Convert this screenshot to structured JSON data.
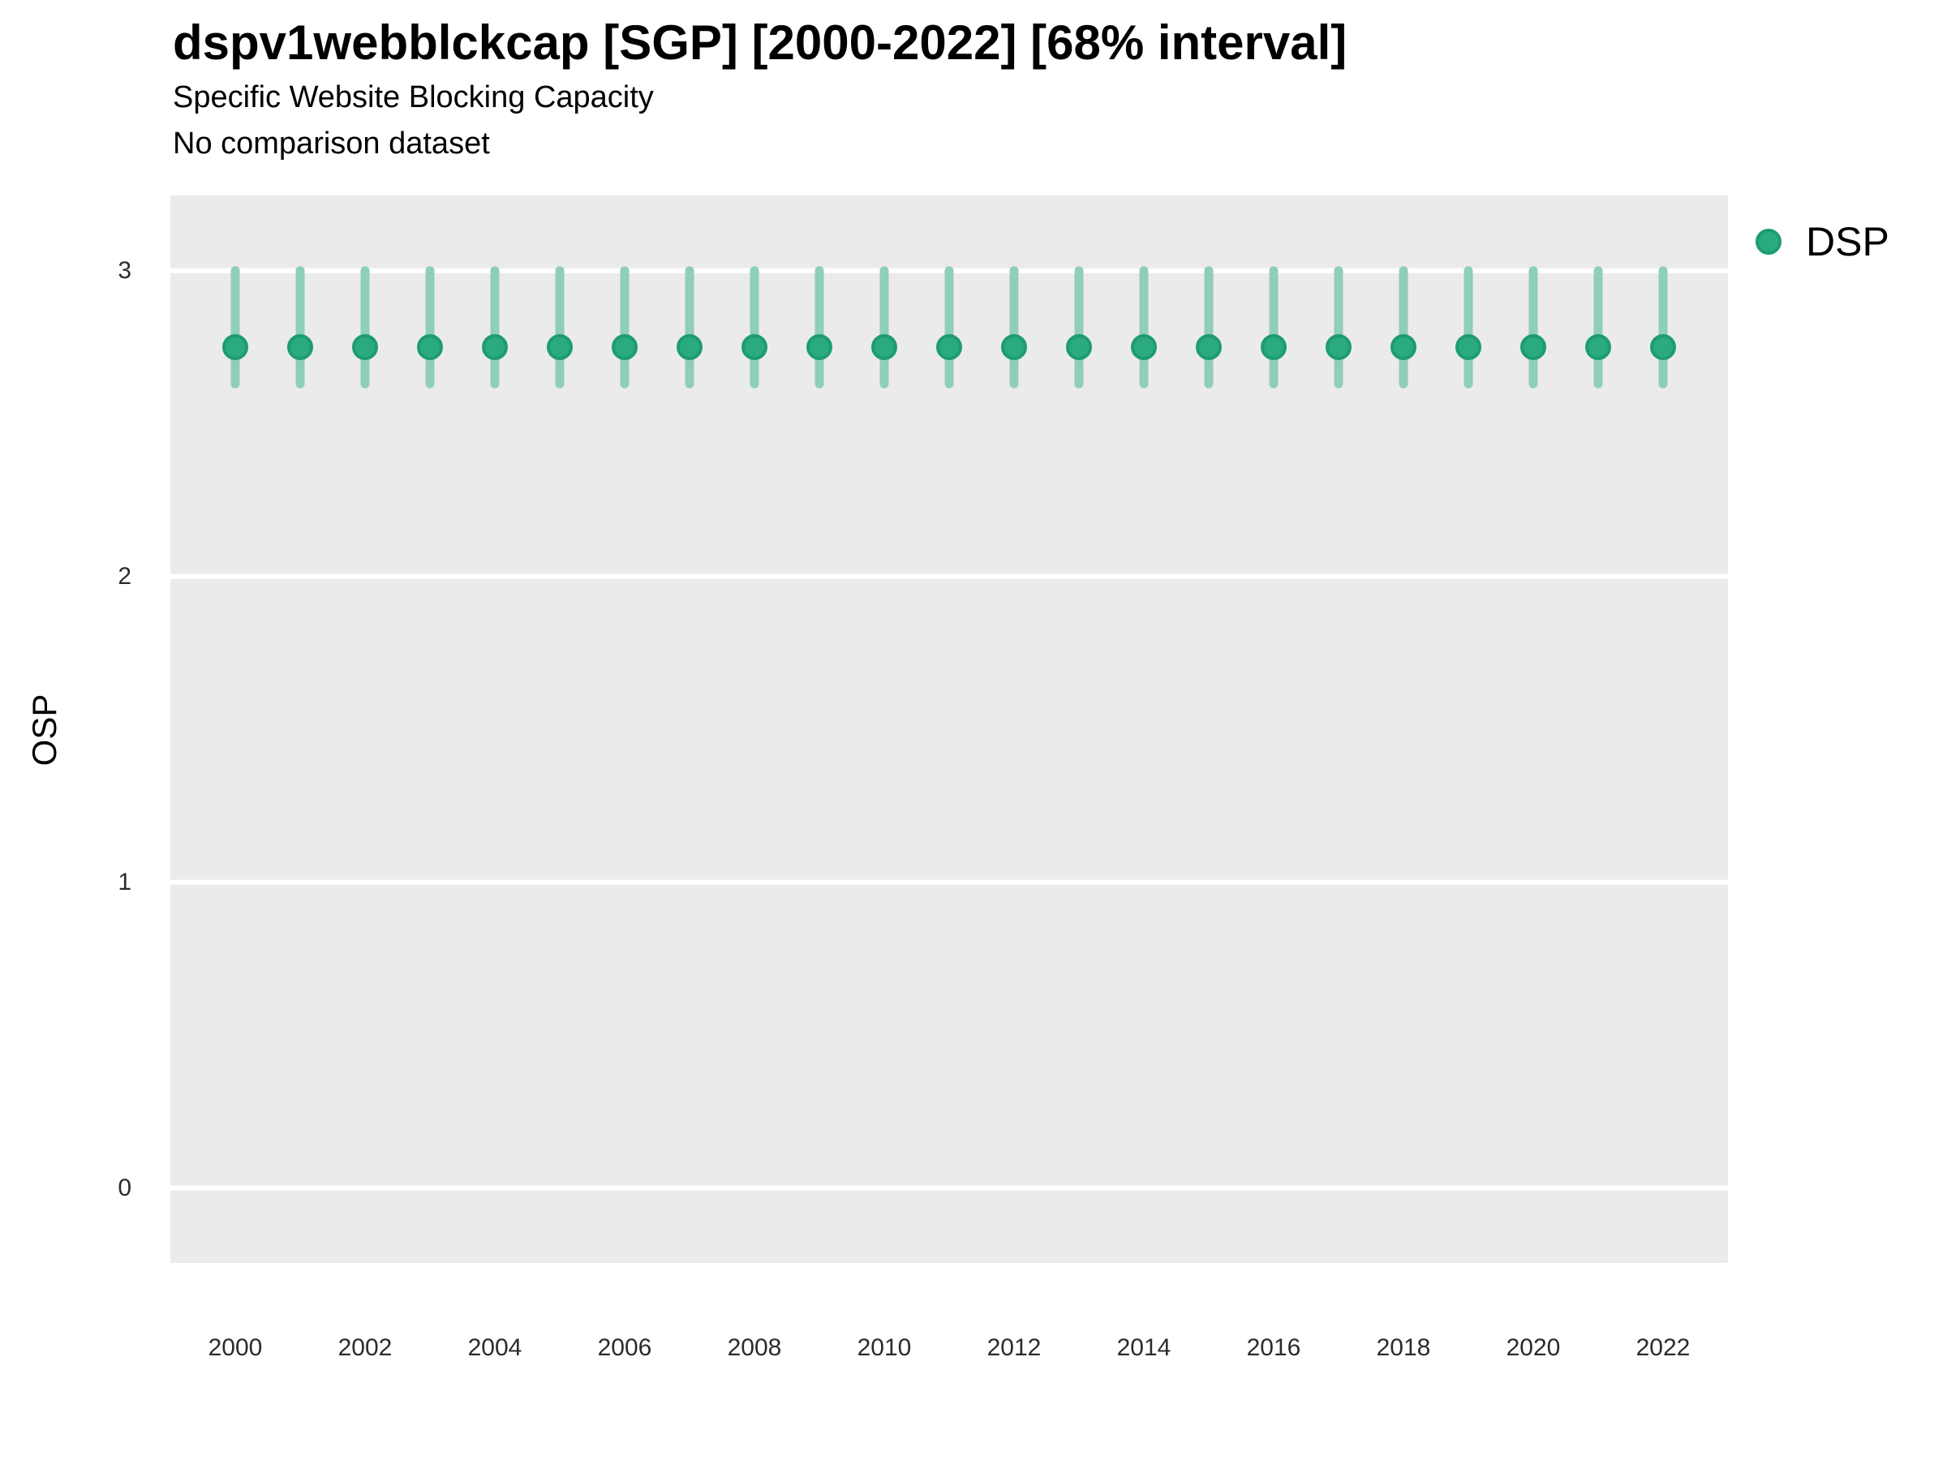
{
  "chart_data": {
    "type": "scatter",
    "variant": "pointrange-with-error-bars",
    "title": "dspv1webblckcap [SGP] [2000-2022] [68% interval]",
    "subtitle": "Specific Website Blocking Capacity",
    "note": "No comparison dataset",
    "xlabel": "",
    "ylabel": "OSP",
    "interval_label": "68% interval",
    "legend": {
      "position": "right-top",
      "entries": [
        {
          "label": "DSP",
          "color": "#2BAA7F"
        }
      ]
    },
    "x": [
      2000,
      2001,
      2002,
      2003,
      2004,
      2005,
      2006,
      2007,
      2008,
      2009,
      2010,
      2011,
      2012,
      2013,
      2014,
      2015,
      2016,
      2017,
      2018,
      2019,
      2020,
      2021,
      2022
    ],
    "series": [
      {
        "name": "DSP",
        "mean": [
          2.75,
          2.75,
          2.75,
          2.75,
          2.75,
          2.75,
          2.75,
          2.75,
          2.75,
          2.75,
          2.75,
          2.75,
          2.75,
          2.75,
          2.75,
          2.75,
          2.75,
          2.75,
          2.75,
          2.75,
          2.75,
          2.75,
          2.75
        ],
        "lower": [
          2.63,
          2.63,
          2.63,
          2.63,
          2.63,
          2.63,
          2.63,
          2.63,
          2.63,
          2.63,
          2.63,
          2.63,
          2.63,
          2.63,
          2.63,
          2.63,
          2.63,
          2.63,
          2.63,
          2.63,
          2.63,
          2.63,
          2.63
        ],
        "upper": [
          3.0,
          3.0,
          3.0,
          3.0,
          3.0,
          3.0,
          3.0,
          3.0,
          3.0,
          3.0,
          3.0,
          3.0,
          3.0,
          3.0,
          3.0,
          3.0,
          3.0,
          3.0,
          3.0,
          3.0,
          3.0,
          3.0,
          3.0
        ],
        "point_color": "#2BAA7F",
        "point_stroke_color": "#1E9C71",
        "errorbar_color": "#8FCEB8"
      }
    ],
    "xticks": [
      2000,
      2002,
      2004,
      2006,
      2008,
      2010,
      2012,
      2014,
      2016,
      2018,
      2020,
      2022
    ],
    "yticks": [
      0,
      1,
      2,
      3
    ],
    "xlim": [
      1999,
      2023
    ],
    "ylim": [
      -0.245,
      3.246
    ],
    "grid": "horizontal-major-only",
    "gridline_color": "#FFFFFF",
    "panel_background": "#EBEBEB",
    "tick_label_color": "#2b2b2b"
  }
}
